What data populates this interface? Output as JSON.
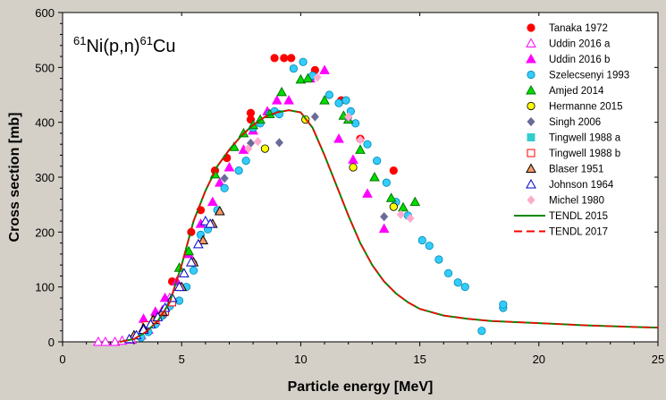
{
  "chart_data": {
    "type": "scatter",
    "title": "61Ni(p,n)61Cu",
    "title_parts": {
      "a_mass": "61",
      "target_reaction": "Ni(p,n)",
      "b_mass": "61",
      "product": "Cu"
    },
    "xlabel": "Particle energy [MeV]",
    "ylabel": "Cross section [mb]",
    "xlim": [
      0,
      25
    ],
    "ylim": [
      0,
      600
    ],
    "xticks": [
      0,
      5,
      10,
      15,
      20,
      25
    ],
    "yticks": [
      0,
      100,
      200,
      300,
      400,
      500,
      600
    ],
    "grid": false,
    "legend_position": "top-right",
    "series": [
      {
        "name": "Tanaka 1972",
        "marker": "circle",
        "color": "#ff0000",
        "filled": true,
        "points": [
          [
            4.6,
            110
          ],
          [
            5.4,
            200
          ],
          [
            5.8,
            240
          ],
          [
            6.4,
            312
          ],
          [
            6.9,
            335
          ],
          [
            7.9,
            405
          ],
          [
            7.9,
            417
          ],
          [
            8.9,
            517
          ],
          [
            9.3,
            517
          ],
          [
            9.6,
            517
          ],
          [
            10.6,
            495
          ],
          [
            11.7,
            440
          ],
          [
            12.5,
            370
          ],
          [
            13.9,
            312
          ]
        ]
      },
      {
        "name": "Uddin 2016 a",
        "marker": "triangle",
        "color": "#ff00ff",
        "filled": false,
        "points": [
          [
            1.5,
            0
          ],
          [
            1.8,
            0
          ],
          [
            2.2,
            0
          ],
          [
            2.5,
            2
          ],
          [
            2.9,
            4
          ],
          [
            3.3,
            12
          ],
          [
            3.6,
            22
          ],
          [
            3.9,
            38
          ],
          [
            4.2,
            58
          ],
          [
            4.5,
            80
          ]
        ]
      },
      {
        "name": "Uddin 2016 b",
        "marker": "triangle",
        "color": "#ff00ff",
        "filled": true,
        "points": [
          [
            3.4,
            42
          ],
          [
            3.9,
            55
          ],
          [
            4.3,
            80
          ],
          [
            4.8,
            110
          ],
          [
            5.3,
            160
          ],
          [
            5.8,
            215
          ],
          [
            6.3,
            255
          ],
          [
            6.6,
            290
          ],
          [
            7.0,
            318
          ],
          [
            7.6,
            350
          ],
          [
            8.0,
            385
          ],
          [
            8.6,
            420
          ],
          [
            9.0,
            440
          ],
          [
            9.5,
            440
          ],
          [
            10.4,
            480
          ],
          [
            11.0,
            495
          ],
          [
            11.6,
            370
          ],
          [
            12.2,
            332
          ],
          [
            12.8,
            270
          ],
          [
            13.5,
            206
          ]
        ]
      },
      {
        "name": "Szelecsenyi 1993",
        "marker": "circle",
        "color": "#33ccff",
        "filled": true,
        "points": [
          [
            3.3,
            8
          ],
          [
            3.6,
            18
          ],
          [
            3.9,
            32
          ],
          [
            4.2,
            48
          ],
          [
            4.5,
            65
          ],
          [
            4.9,
            75
          ],
          [
            5.2,
            100
          ],
          [
            5.5,
            130
          ],
          [
            5.8,
            195
          ],
          [
            6.1,
            205
          ],
          [
            6.5,
            240
          ],
          [
            6.8,
            280
          ],
          [
            7.4,
            312
          ],
          [
            7.7,
            330
          ],
          [
            8.0,
            390
          ],
          [
            8.3,
            398
          ],
          [
            8.7,
            415
          ],
          [
            8.9,
            420
          ],
          [
            9.1,
            415
          ],
          [
            9.7,
            498
          ],
          [
            10.1,
            510
          ],
          [
            10.5,
            485
          ],
          [
            11.2,
            450
          ],
          [
            11.6,
            435
          ],
          [
            11.9,
            440
          ],
          [
            12.1,
            420
          ],
          [
            12.3,
            398
          ],
          [
            12.8,
            360
          ],
          [
            13.2,
            330
          ],
          [
            13.6,
            290
          ],
          [
            14.0,
            255
          ],
          [
            14.5,
            230
          ],
          [
            15.1,
            185
          ],
          [
            15.4,
            175
          ],
          [
            15.8,
            150
          ],
          [
            16.2,
            125
          ],
          [
            16.6,
            108
          ],
          [
            16.9,
            100
          ],
          [
            17.6,
            20
          ],
          [
            18.5,
            62
          ],
          [
            18.5,
            68
          ]
        ]
      },
      {
        "name": "Amjed 2014",
        "marker": "triangle",
        "color": "#00dd00",
        "filled": true,
        "points": [
          [
            4.9,
            135
          ],
          [
            5.3,
            165
          ],
          [
            6.4,
            305
          ],
          [
            7.2,
            355
          ],
          [
            7.6,
            380
          ],
          [
            8.0,
            395
          ],
          [
            8.3,
            405
          ],
          [
            8.7,
            415
          ],
          [
            9.2,
            455
          ],
          [
            10.0,
            478
          ],
          [
            10.3,
            480
          ],
          [
            11.0,
            440
          ],
          [
            11.8,
            412
          ],
          [
            12.0,
            405
          ],
          [
            12.5,
            350
          ],
          [
            13.1,
            300
          ],
          [
            13.8,
            262
          ],
          [
            14.3,
            245
          ],
          [
            14.8,
            255
          ]
        ]
      },
      {
        "name": "Hermanne 2015",
        "marker": "circle",
        "color": "#ffff00",
        "filled": true,
        "points": [
          [
            8.5,
            352
          ],
          [
            10.2,
            405
          ],
          [
            12.2,
            318
          ],
          [
            13.9,
            246
          ]
        ]
      },
      {
        "name": "Singh 2006",
        "marker": "diamond",
        "color": "#6b6b99",
        "filled": true,
        "points": [
          [
            4.3,
            50
          ],
          [
            5.5,
            145
          ],
          [
            6.8,
            298
          ],
          [
            7.9,
            362
          ],
          [
            9.1,
            363
          ],
          [
            10.6,
            410
          ],
          [
            12.0,
            408
          ],
          [
            13.5,
            228
          ]
        ]
      },
      {
        "name": "Tingwell 1988 a",
        "marker": "square",
        "color": "#33cccc",
        "filled": true,
        "points": []
      },
      {
        "name": "Tingwell 1988 b",
        "marker": "square",
        "color": "#ff0000",
        "filled": false,
        "points": [
          [
            3.5,
            30
          ],
          [
            3.9,
            40
          ],
          [
            4.3,
            55
          ],
          [
            4.6,
            72
          ]
        ]
      },
      {
        "name": "Blaser 1951",
        "marker": "triangle",
        "color": "#000000",
        "filled": false,
        "fill": "#ff9966",
        "points": [
          [
            3.0,
            12
          ],
          [
            3.4,
            25
          ],
          [
            3.8,
            40
          ],
          [
            4.2,
            55
          ],
          [
            4.6,
            80
          ],
          [
            5.0,
            100
          ],
          [
            5.5,
            145
          ],
          [
            5.9,
            185
          ],
          [
            6.3,
            215
          ],
          [
            6.6,
            238
          ]
        ]
      },
      {
        "name": "Johnson 1964",
        "marker": "triangle",
        "color": "#0000cc",
        "filled": false,
        "points": [
          [
            2.8,
            5
          ],
          [
            3.1,
            12
          ],
          [
            3.4,
            22
          ],
          [
            3.7,
            32
          ],
          [
            4.0,
            45
          ],
          [
            4.3,
            62
          ],
          [
            4.6,
            80
          ],
          [
            4.9,
            100
          ],
          [
            5.1,
            125
          ],
          [
            5.4,
            145
          ],
          [
            5.7,
            178
          ],
          [
            6.0,
            220
          ],
          [
            6.2,
            215
          ]
        ]
      },
      {
        "name": "Michel 1980",
        "marker": "diamond",
        "color": "#ffaacc",
        "filled": true,
        "points": [
          [
            7.8,
            352
          ],
          [
            8.2,
            365
          ],
          [
            10.7,
            482
          ],
          [
            12.0,
            410
          ],
          [
            12.5,
            368
          ],
          [
            14.2,
            232
          ],
          [
            14.6,
            225
          ]
        ]
      }
    ],
    "curves": [
      {
        "name": "TENDL 2015",
        "style": "solid",
        "color": "#008800",
        "points": [
          [
            2.4,
            0
          ],
          [
            3.0,
            5
          ],
          [
            3.5,
            18
          ],
          [
            4.0,
            38
          ],
          [
            4.5,
            72
          ],
          [
            5.0,
            140
          ],
          [
            5.5,
            220
          ],
          [
            6.0,
            275
          ],
          [
            6.5,
            320
          ],
          [
            7.0,
            350
          ],
          [
            7.5,
            375
          ],
          [
            8.0,
            395
          ],
          [
            8.5,
            410
          ],
          [
            9.0,
            418
          ],
          [
            9.5,
            422
          ],
          [
            10.0,
            418
          ],
          [
            10.5,
            390
          ],
          [
            11.0,
            340
          ],
          [
            11.5,
            285
          ],
          [
            12.0,
            230
          ],
          [
            12.5,
            180
          ],
          [
            13.0,
            140
          ],
          [
            13.5,
            110
          ],
          [
            14.0,
            88
          ],
          [
            14.5,
            72
          ],
          [
            15.0,
            60
          ],
          [
            16.0,
            48
          ],
          [
            17.0,
            42
          ],
          [
            18.0,
            38
          ],
          [
            20.0,
            34
          ],
          [
            22.0,
            30
          ],
          [
            24.0,
            27
          ],
          [
            25.0,
            26
          ]
        ]
      },
      {
        "name": "TENDL 2017",
        "style": "dashed",
        "color": "#ff0000",
        "points": [
          [
            2.4,
            0
          ],
          [
            3.0,
            5
          ],
          [
            3.5,
            18
          ],
          [
            4.0,
            38
          ],
          [
            4.5,
            72
          ],
          [
            5.0,
            140
          ],
          [
            5.5,
            220
          ],
          [
            6.0,
            275
          ],
          [
            6.5,
            320
          ],
          [
            7.0,
            350
          ],
          [
            7.5,
            375
          ],
          [
            8.0,
            395
          ],
          [
            8.5,
            410
          ],
          [
            9.0,
            418
          ],
          [
            9.5,
            422
          ],
          [
            10.0,
            418
          ],
          [
            10.5,
            390
          ],
          [
            11.0,
            340
          ],
          [
            11.5,
            285
          ],
          [
            12.0,
            230
          ],
          [
            12.5,
            180
          ],
          [
            13.0,
            140
          ],
          [
            13.5,
            110
          ],
          [
            14.0,
            88
          ],
          [
            14.5,
            72
          ],
          [
            15.0,
            60
          ],
          [
            16.0,
            48
          ],
          [
            17.0,
            42
          ],
          [
            18.0,
            38
          ],
          [
            20.0,
            34
          ],
          [
            22.0,
            30
          ],
          [
            24.0,
            27
          ],
          [
            25.0,
            26
          ]
        ]
      }
    ],
    "colors": {
      "plot_background": "#ffffff",
      "frame_background": "#d4d0c8",
      "axis": "#000000"
    }
  }
}
